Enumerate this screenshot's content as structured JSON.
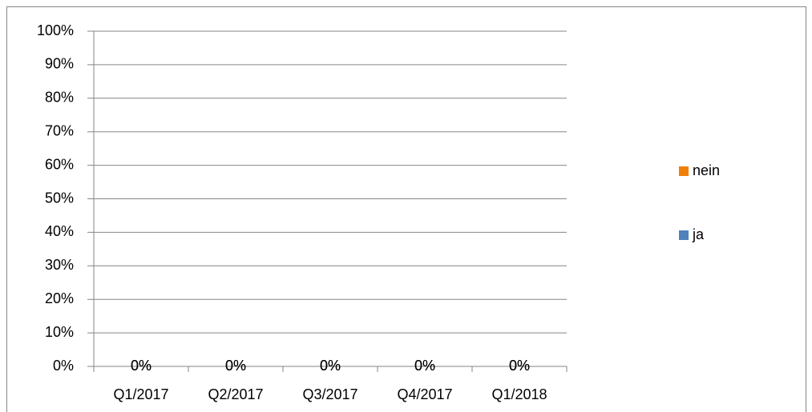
{
  "chart_data": {
    "type": "stacked_bar",
    "categories": [
      "Q1/2017",
      "Q2/2017",
      "Q3/2017",
      "Q4/2017",
      "Q1/2018"
    ],
    "series": [
      {
        "name": "ja",
        "color": "#4f81bd",
        "values": [
          0,
          0,
          0,
          0,
          0
        ],
        "value_labels": [
          "0%",
          "0%",
          "0%",
          "0%",
          "0%"
        ]
      },
      {
        "name": "nein",
        "color": "#f07f09",
        "values": [
          0,
          0,
          0,
          0,
          0
        ],
        "value_labels": [
          "0%",
          "0%",
          "0%",
          "0%",
          "0%"
        ]
      }
    ],
    "ylim": [
      0,
      100
    ],
    "yticks": [
      {
        "value": 0,
        "label": "0%"
      },
      {
        "value": 10,
        "label": "10%"
      },
      {
        "value": 20,
        "label": "20%"
      },
      {
        "value": 30,
        "label": "30%"
      },
      {
        "value": 40,
        "label": "40%"
      },
      {
        "value": 50,
        "label": "50%"
      },
      {
        "value": 60,
        "label": "60%"
      },
      {
        "value": 70,
        "label": "70%"
      },
      {
        "value": 80,
        "label": "80%"
      },
      {
        "value": 90,
        "label": "90%"
      },
      {
        "value": 100,
        "label": "100%"
      }
    ],
    "grid": true,
    "legend": "right"
  }
}
